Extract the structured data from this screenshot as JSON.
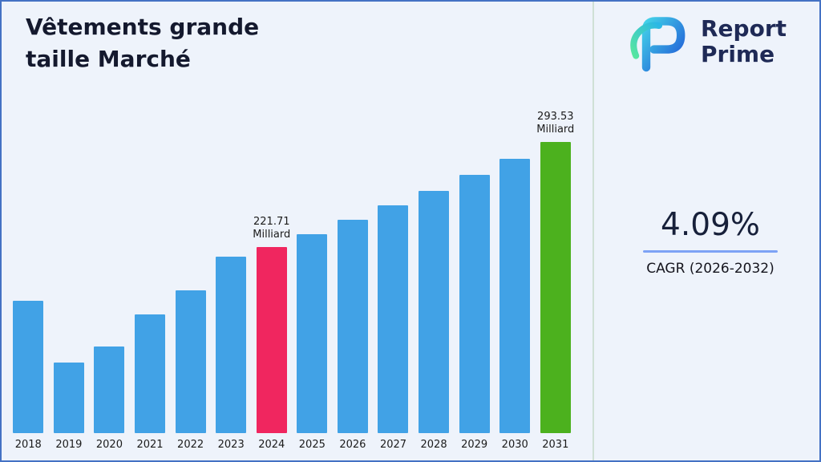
{
  "title": "Vêtements grande taille Marché",
  "logo": {
    "line1": "Report",
    "line2": "Prime"
  },
  "cagr": {
    "value": "4.09%",
    "label": "CAGR (2026-2032)"
  },
  "chart_data": {
    "type": "bar",
    "title": "Vêtements grande taille Marché",
    "xlabel": "",
    "ylabel": "",
    "unit": "Milliard",
    "categories": [
      "2018",
      "2019",
      "2020",
      "2021",
      "2022",
      "2023",
      "2024",
      "2025",
      "2026",
      "2027",
      "2028",
      "2029",
      "2030",
      "2031"
    ],
    "values": [
      185,
      143,
      154,
      176,
      192,
      215,
      221.71,
      230.78,
      240.22,
      250.04,
      260.27,
      270.92,
      282.0,
      293.53
    ],
    "ylim": [
      95,
      295
    ],
    "grid": false,
    "legend": false,
    "annotations": [
      {
        "category": "2024",
        "text": "221.71\nMilliard"
      },
      {
        "category": "2031",
        "text": "293.53\nMilliard"
      }
    ],
    "bar_colors": {
      "default": "#41a2e6",
      "2024": "#f0265f",
      "2031": "#4cb11e"
    }
  }
}
